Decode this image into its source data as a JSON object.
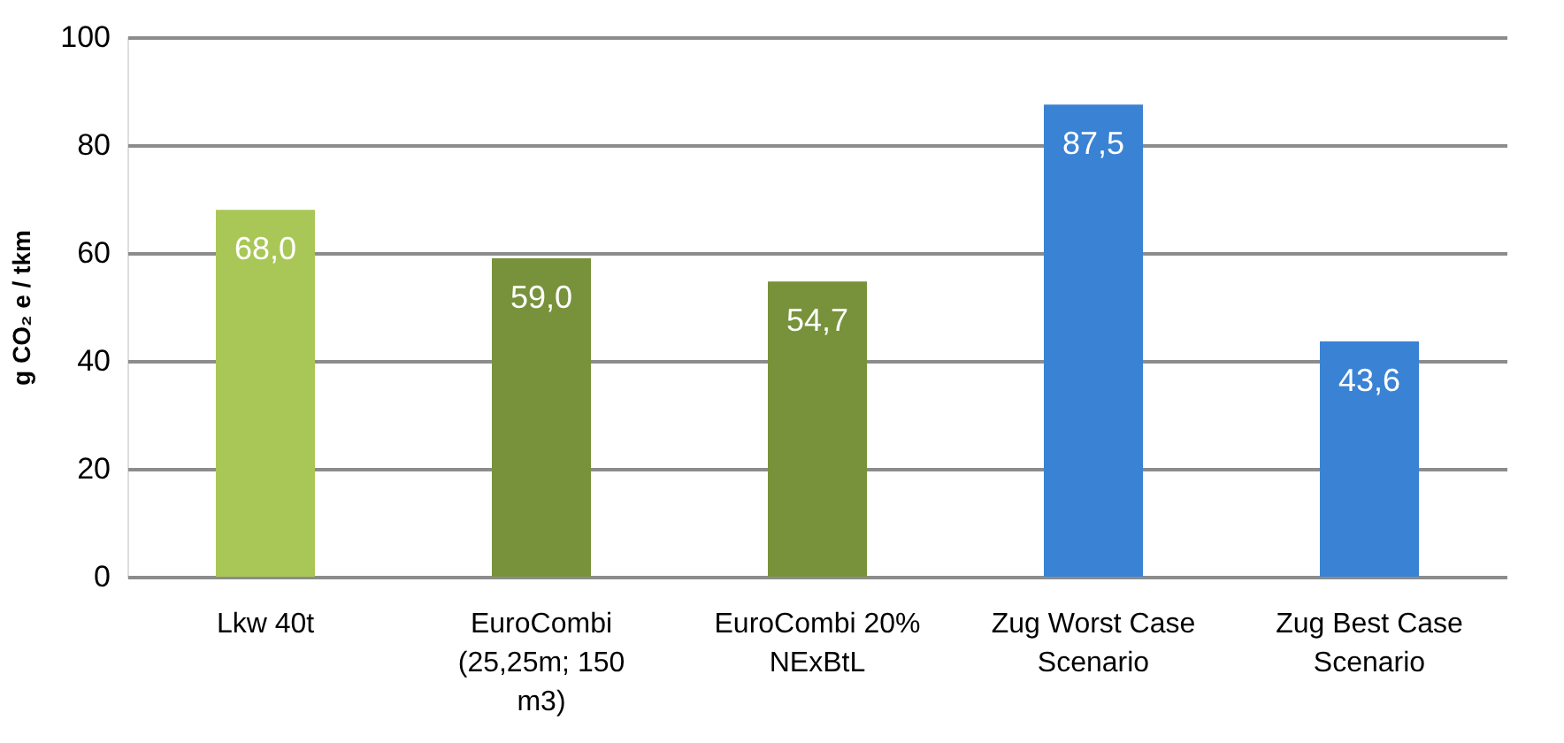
{
  "chart_data": {
    "type": "bar",
    "ylabel": "g CO₂ e / tkm",
    "categories": [
      "Lkw 40t",
      "EuroCombi (25,25m; 150 m3)",
      "EuroCombi 20% NExBtL",
      "Zug Worst Case Scenario",
      "Zug Best Case Scenario"
    ],
    "values": [
      68.0,
      59.0,
      54.7,
      87.5,
      43.6
    ],
    "value_labels": [
      "68,0",
      "59,0",
      "54,7",
      "87,5",
      "43,6"
    ],
    "colors": [
      "#a9c756",
      "#77923a",
      "#77923a",
      "#3a82d4",
      "#3a82d4"
    ],
    "ylim": [
      0,
      100
    ],
    "yticks": [
      0,
      20,
      40,
      60,
      80,
      100
    ],
    "grid": "y"
  }
}
